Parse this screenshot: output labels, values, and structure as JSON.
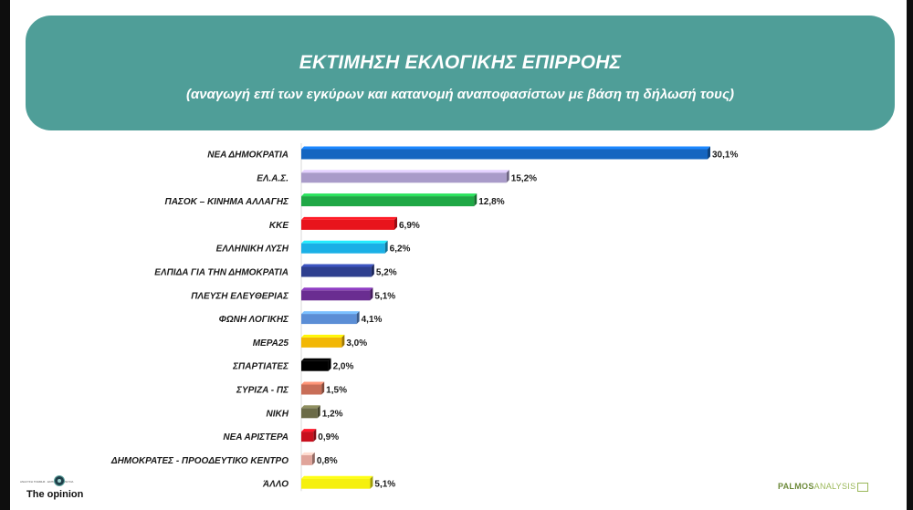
{
  "header": {
    "title": "ΕΚΤΙΜΗΣΗ ΕΚΛΟΓΙΚΗΣ ΕΠΙΡΡΟΗΣ",
    "subtitle": "(αναγωγή επί των εγκύρων και κατανομή αναποφασίστων με βάση τη δήλωσή τους)"
  },
  "logos": {
    "left_top_text": "ΑΝΑΛΥΣΗ ΓΝΩΜΗΣ · ΕΚΠΟΜΠΗ ΕΡΕΥΝΑ",
    "left_text": "The opinion",
    "right_part1": "PALMOS",
    "right_part2": "ANALYSIS",
    "left_icon": "eye-icon",
    "right_icon": "palmos-mark-icon"
  },
  "chart_data": {
    "type": "bar",
    "orientation": "horizontal",
    "title": "ΕΚΤΙΜΗΣΗ ΕΚΛΟΓΙΚΗΣ ΕΠΙΡΡΟΗΣ",
    "subtitle": "(αναγωγή επί των εγκύρων και κατανομή αναποφασίστων με βάση τη δήλωσή τους)",
    "xlabel": "",
    "ylabel": "",
    "xlim": [
      0,
      30.1
    ],
    "grid": false,
    "legend": "none",
    "categories": [
      "ΝΕΑ ΔΗΜΟΚΡΑΤΙΑ",
      "ΕΛ.Α.Σ.",
      "ΠΑΣΟΚ – ΚΙΝΗΜΑ ΑΛΛΑΓΗΣ",
      "ΚΚΕ",
      "ΕΛΛΗΝΙΚΗ ΛΥΣΗ",
      "ΕΛΠΙΔΑ ΓΙΑ ΤΗΝ ΔΗΜΟΚΡΑΤΙΑ",
      "ΠΛΕΥΣΗ ΕΛΕΥΘΕΡΙΑΣ",
      "ΦΩΝΗ ΛΟΓΙΚΗΣ",
      "ΜΕΡΑ25",
      "ΣΠΑΡΤΙΑΤΕΣ",
      "ΣΥΡΙΖΑ - ΠΣ",
      "ΝΙΚΗ",
      "ΝΕΑ ΑΡΙΣΤΕΡΑ",
      "ΔΗΜΟΚΡΑΤΕΣ - ΠΡΟΟΔΕΥΤΙΚΟ ΚΕΝΤΡΟ",
      "ΆΛΛΟ"
    ],
    "values": [
      30.1,
      15.2,
      12.8,
      6.9,
      6.2,
      5.2,
      5.1,
      4.1,
      3.0,
      2.0,
      1.5,
      1.2,
      0.9,
      0.8,
      5.1
    ],
    "value_labels": [
      "30,1%",
      "15,2%",
      "12,8%",
      "6,9%",
      "6,2%",
      "5,2%",
      "5,1%",
      "4,1%",
      "3,0%",
      "2,0%",
      "1,5%",
      "1,2%",
      "0,9%",
      "0,8%",
      "5,1%"
    ],
    "colors": [
      "#1565c0",
      "#a99bc9",
      "#1fa845",
      "#e8141c",
      "#1ab0e6",
      "#2e3f8f",
      "#6a2d91",
      "#5b8ed6",
      "#f2b705",
      "#000000",
      "#c86e58",
      "#6b6b47",
      "#c8101e",
      "#e0a49a",
      "#f5f00e"
    ]
  }
}
